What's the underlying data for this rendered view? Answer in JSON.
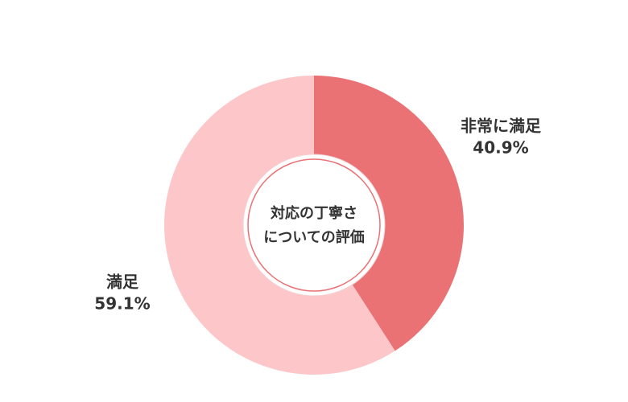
{
  "chart_data": {
    "type": "pie",
    "center_label": [
      "対応の丁寧さ",
      "についての評価"
    ],
    "categories": [
      "非常に満足",
      "満足"
    ],
    "values": [
      40.9,
      59.1
    ],
    "value_labels": [
      "40.9%",
      "59.1%"
    ],
    "colors": [
      "#ea7174",
      "#fdc6c8"
    ]
  }
}
